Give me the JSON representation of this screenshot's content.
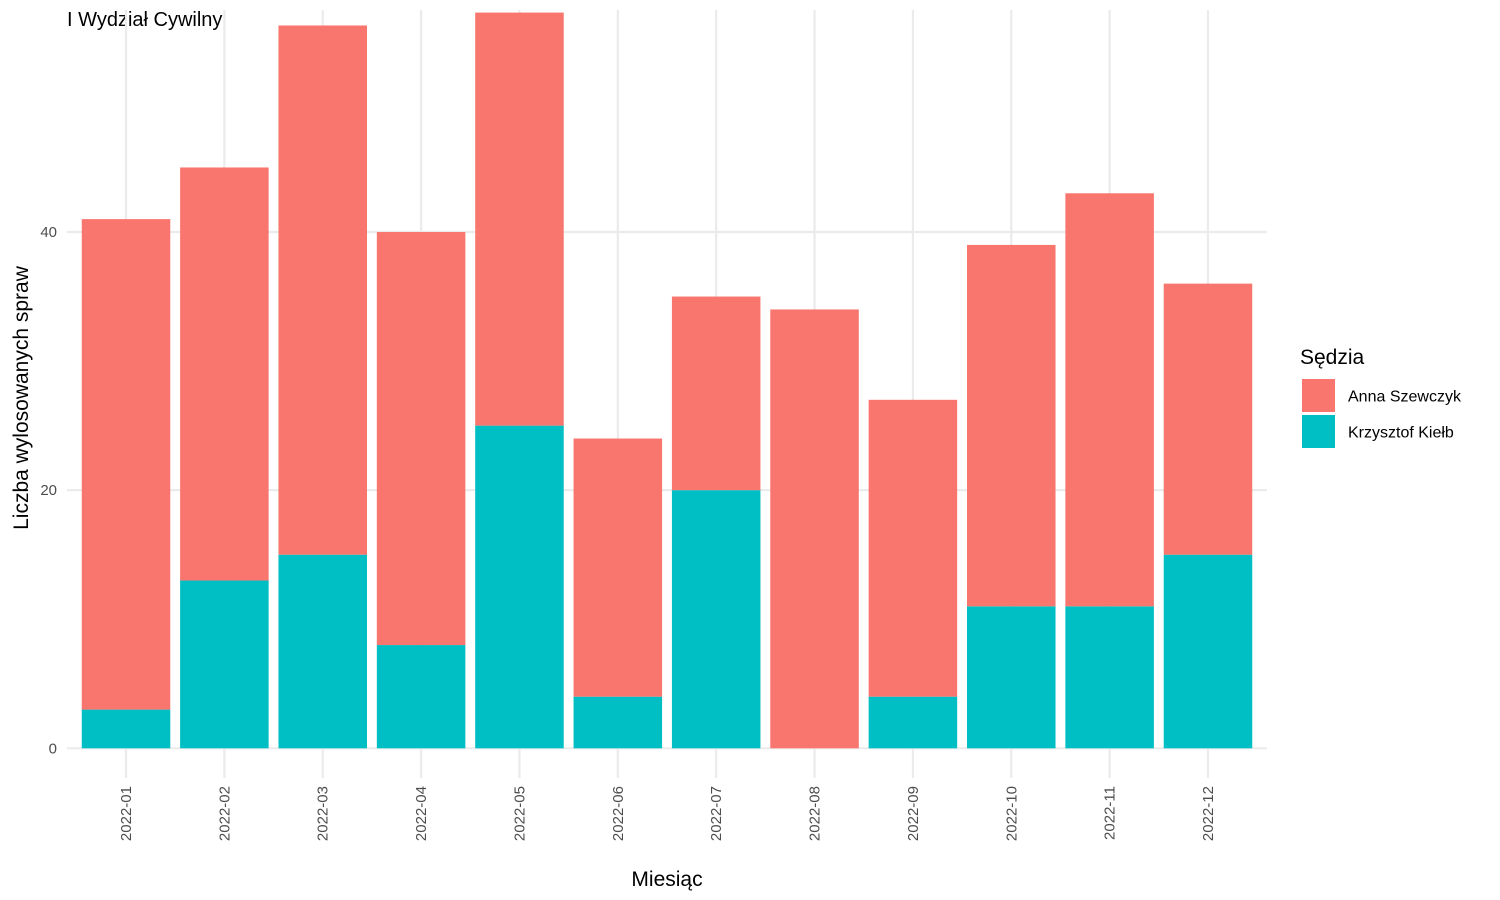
{
  "chart_data": {
    "type": "bar",
    "stacked": true,
    "title": "I Wydział Cywilny",
    "xlabel": "Miesiąc",
    "ylabel": "Liczba wylosowanych spraw",
    "categories": [
      "2022-01",
      "2022-02",
      "2022-03",
      "2022-04",
      "2022-05",
      "2022-06",
      "2022-07",
      "2022-08",
      "2022-09",
      "2022-10",
      "2022-11",
      "2022-12"
    ],
    "series": [
      {
        "name": "Krzysztof Kiełb",
        "color": "#00BFC4",
        "values": [
          3,
          13,
          15,
          8,
          25,
          4,
          20,
          0,
          4,
          11,
          11,
          15
        ]
      },
      {
        "name": "Anna Szewczyk",
        "color": "#F8766D",
        "values": [
          38,
          32,
          41,
          32,
          32,
          20,
          15,
          34,
          23,
          28,
          32,
          21
        ]
      }
    ],
    "ylim": [
      -2.3,
      57.2
    ],
    "yticks": [
      0,
      20,
      40
    ],
    "ytick_labels": [
      "0",
      "20",
      "40"
    ],
    "grid": true,
    "legend": {
      "title": "Sędzia",
      "position": "right",
      "entries": [
        "Anna Szewczyk",
        "Krzysztof Kiełb"
      ]
    }
  }
}
